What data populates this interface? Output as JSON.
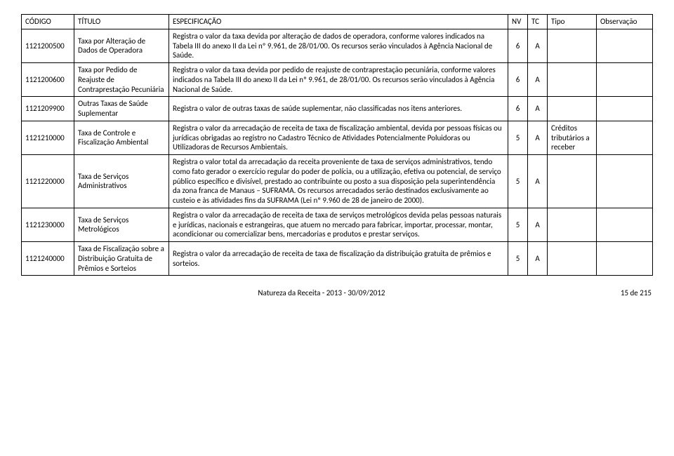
{
  "headers": {
    "codigo": "CÓDIGO",
    "titulo": "TÍTULO",
    "espec": "ESPECIFICAÇÃO",
    "nv": "NV",
    "tc": "TC",
    "tipo": "Tipo",
    "obs": "Observação"
  },
  "rows": [
    {
      "codigo": "1121200500",
      "titulo": "Taxa por Alteração de Dados de Operadora",
      "espec": "Registra o valor da taxa devida por alteração de dados de operadora, conforme valores indicados na Tabela III do anexo II da Lei nº 9.961, de 28/01/00. Os recursos serão vinculados à Agência Nacional de Saúde.",
      "nv": "6",
      "tc": "A",
      "tipo": "",
      "obs": ""
    },
    {
      "codigo": "1121200600",
      "titulo": "Taxa por Pedido de Reajuste de Contraprestação Pecuniária",
      "espec": "Registra o valor da taxa devida por pedido de reajuste de contraprestação pecuniária, conforme valores indicados na Tabela III do anexo II da Lei nº 9.961, de 28/01/00. Os recursos serão vinculados à Agência Nacional de Saúde.",
      "nv": "6",
      "tc": "A",
      "tipo": "",
      "obs": ""
    },
    {
      "codigo": "1121209900",
      "titulo": "Outras Taxas de Saúde Suplementar",
      "espec": "Registra o valor de outras taxas de saúde suplementar, não classificadas nos itens anteriores.",
      "nv": "6",
      "tc": "A",
      "tipo": "",
      "obs": ""
    },
    {
      "codigo": "1121210000",
      "titulo": "Taxa de Controle e Fiscalização Ambiental",
      "espec": "Registra o valor da arrecadação de receita de taxa de fiscalização ambiental, devida por pessoas físicas ou jurídicas obrigadas ao registro no Cadastro Técnico de Atividades Potencialmente Poluidoras ou Utilizadoras de Recursos Ambientais.",
      "nv": "5",
      "tc": "A",
      "tipo": "Créditos tributários a receber",
      "obs": ""
    },
    {
      "codigo": "1121220000",
      "titulo": "Taxa de Serviços Administrativos",
      "espec": "Registra o valor total da arrecadação da receita proveniente de taxa de serviços administrativos, tendo como fato gerador o exercício regular do poder de polícia, ou a utilização, efetiva ou potencial, de serviço público específico e divisível, prestado ao contribuinte ou posto a sua disposição pela superintendência da zona franca de Manaus – SUFRAMA. Os recursos arrecadados serão destinados exclusivamente ao custeio e às atividades fins da SUFRAMA (Lei nº 9.960 de 28 de janeiro de 2000).",
      "nv": "5",
      "tc": "A",
      "tipo": "",
      "obs": ""
    },
    {
      "codigo": "1121230000",
      "titulo": "Taxa de Serviços Metrológicos",
      "espec": "Registra o valor da arrecadação de receita de taxa de serviços metrológicos devida pelas pessoas naturais e jurídicas, nacionais e estrangeiras, que atuem no mercado para fabricar, importar, processar, montar, acondicionar ou comercializar bens, mercadorias e produtos e prestar serviços.",
      "nv": "5",
      "tc": "A",
      "tipo": "",
      "obs": ""
    },
    {
      "codigo": "1121240000",
      "titulo": "Taxa de Fiscalização sobre a Distribuição Gratuita de Prêmios e Sorteios",
      "espec": "Registra o valor da arrecadação de receita de taxa de fiscalização da distribuição gratuita de prêmios e sorteios.",
      "nv": "5",
      "tc": "A",
      "tipo": "",
      "obs": ""
    }
  ],
  "footer": {
    "left": "",
    "center": "Natureza da Receita - 2013 - 30/09/2012",
    "right": "15 de 215"
  }
}
